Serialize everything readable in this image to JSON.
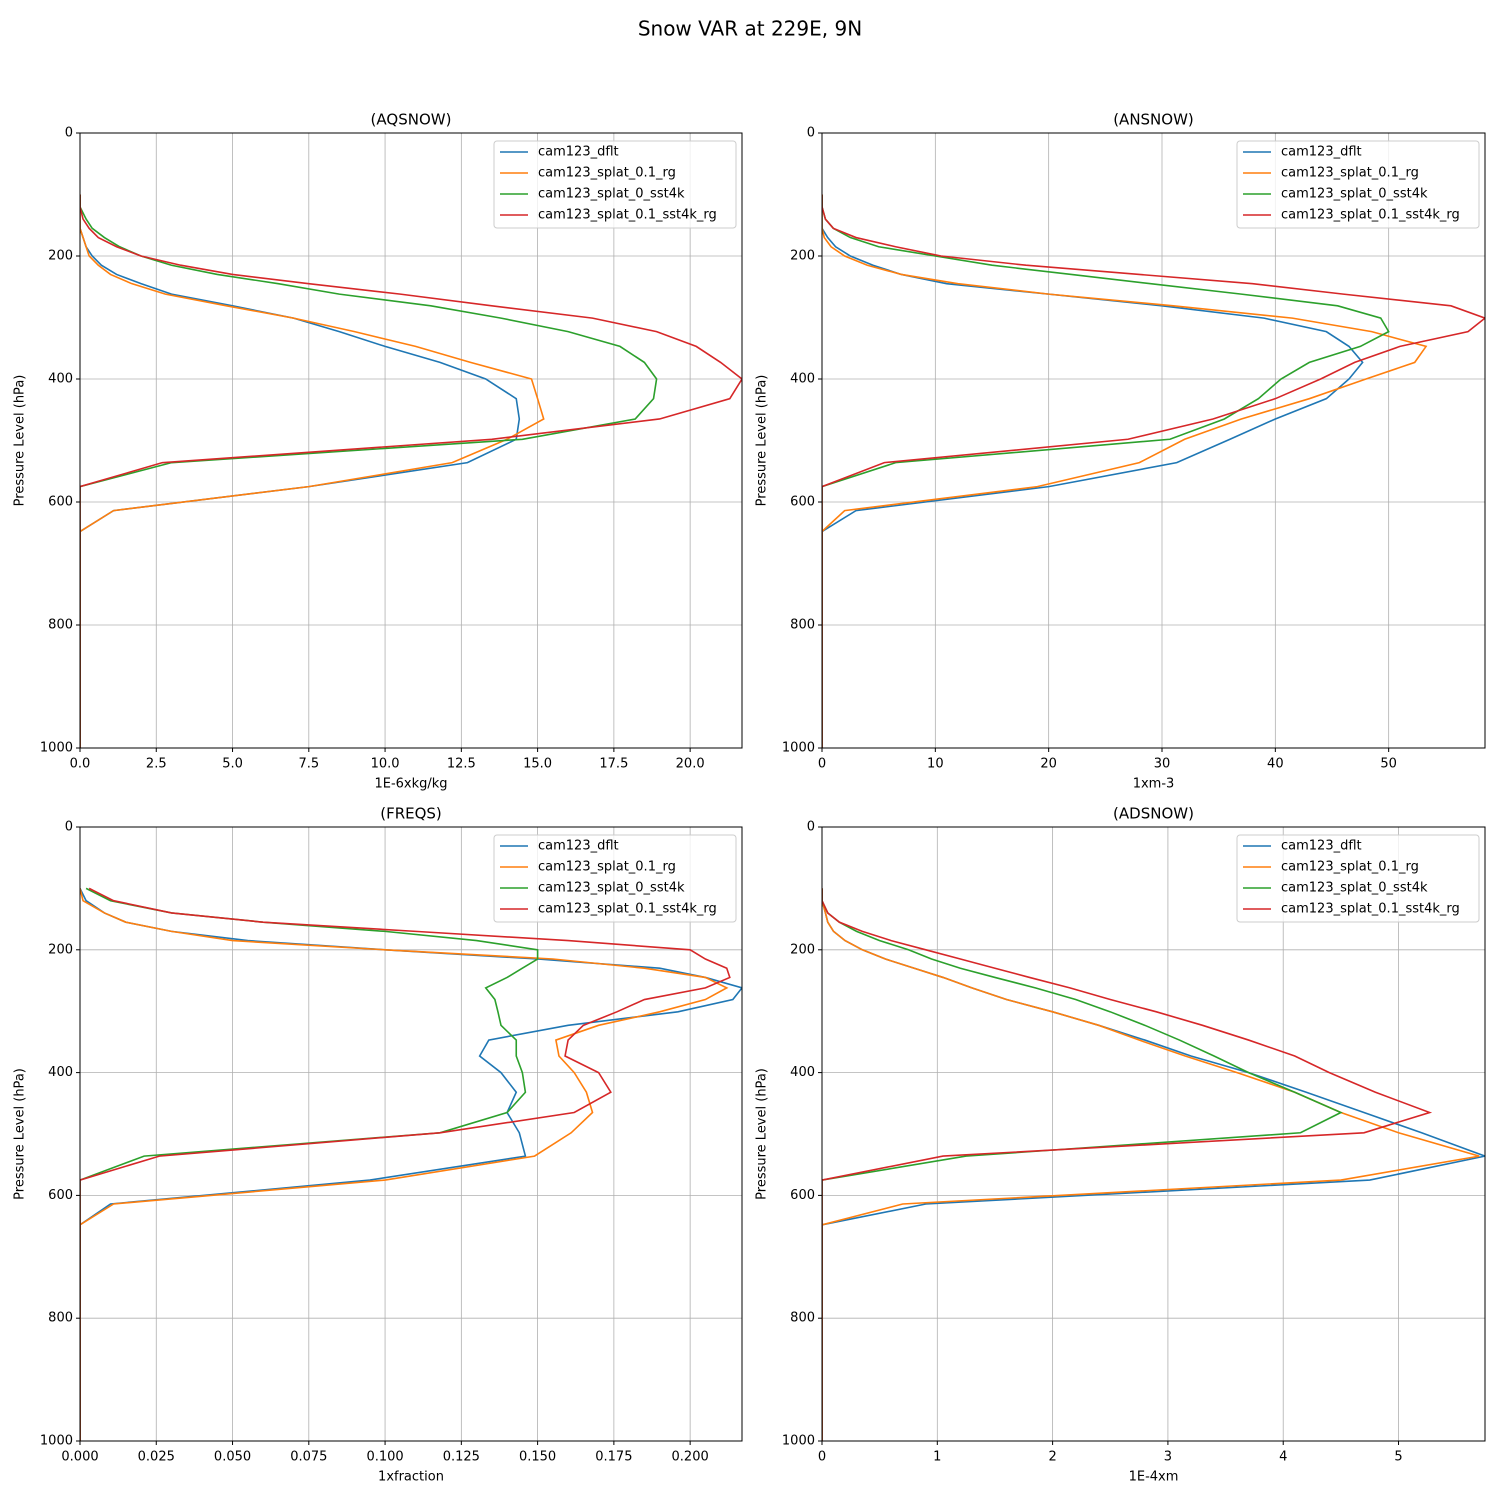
{
  "title": "Snow VAR at 229E, 9N",
  "chart_data": [
    {
      "type": "line",
      "title": "(AQSNOW)",
      "xlabel": "1E-6xkg/kg",
      "ylabel": "Pressure Level (hPa)",
      "y": [
        100,
        120,
        140,
        155,
        170,
        185,
        200,
        215,
        230,
        245,
        262,
        281,
        301,
        323,
        347,
        373,
        400,
        432,
        465,
        498,
        536,
        575,
        614,
        648,
        700,
        800,
        900,
        1000
      ],
      "xlim": [
        0,
        21.7
      ],
      "xticks": [
        {
          "value": 0,
          "label": "0.0"
        },
        2.5,
        {
          "value": 5,
          "label": "5.0"
        },
        7.5,
        {
          "value": 10,
          "label": "10.0"
        },
        12.5,
        {
          "value": 15,
          "label": "15.0"
        },
        17.5,
        {
          "value": 20,
          "label": "20.0"
        }
      ],
      "ylim": [
        1000,
        0
      ],
      "yticks": [
        0,
        200,
        400,
        600,
        800,
        1000
      ],
      "grid": true,
      "legend": "upper right",
      "series": [
        {
          "name": "cam123_dflt",
          "color": "#1f77b4",
          "values": [
            0,
            0,
            0,
            0,
            0.1,
            0.2,
            0.4,
            0.7,
            1.2,
            2.0,
            3.0,
            5.0,
            7.0,
            8.5,
            10.0,
            11.8,
            13.3,
            14.3,
            14.4,
            14.3,
            12.7,
            7.5,
            1.1,
            0,
            0,
            0,
            0,
            0
          ]
        },
        {
          "name": "cam123_splat_0.1_rg",
          "color": "#ff7f0e",
          "values": [
            0,
            0,
            0,
            0,
            0.1,
            0.2,
            0.3,
            0.6,
            1.0,
            1.7,
            2.8,
            4.8,
            7.0,
            9.0,
            11.0,
            12.8,
            14.8,
            15.0,
            15.2,
            14.0,
            12.2,
            7.5,
            1.1,
            0,
            0,
            0,
            0,
            0
          ]
        },
        {
          "name": "cam123_splat_0_sst4k",
          "color": "#2ca02c",
          "values": [
            0,
            0,
            0.2,
            0.4,
            0.8,
            1.3,
            2.0,
            3.0,
            4.5,
            6.5,
            8.5,
            11.5,
            13.8,
            16.0,
            17.7,
            18.5,
            18.9,
            18.8,
            18.2,
            14.5,
            3.0,
            0,
            0,
            0,
            0,
            0,
            0,
            0
          ]
        },
        {
          "name": "cam123_splat_0.1_sst4k_rg",
          "color": "#d62728",
          "values": [
            0,
            0,
            0.1,
            0.3,
            0.6,
            1.2,
            2.0,
            3.3,
            5.0,
            7.5,
            10.5,
            13.5,
            16.8,
            18.9,
            20.2,
            21.0,
            21.7,
            21.3,
            19.0,
            13.5,
            2.7,
            0,
            0,
            0,
            0,
            0,
            0,
            0
          ]
        }
      ]
    },
    {
      "type": "line",
      "title": "(ANSNOW)",
      "xlabel": "1xm-3",
      "ylabel": "Pressure Level (hPa)",
      "y": [
        100,
        120,
        140,
        155,
        170,
        185,
        200,
        215,
        230,
        245,
        262,
        281,
        301,
        323,
        347,
        373,
        400,
        432,
        465,
        498,
        536,
        575,
        614,
        648,
        700,
        800,
        900,
        1000
      ],
      "xlim": [
        0,
        58.5
      ],
      "xticks": [
        0,
        10,
        20,
        30,
        40,
        50
      ],
      "ylim": [
        1000,
        0
      ],
      "yticks": [
        0,
        200,
        400,
        600,
        800,
        1000
      ],
      "grid": true,
      "legend": "upper right",
      "series": [
        {
          "name": "cam123_dflt",
          "color": "#1f77b4",
          "values": [
            0,
            0,
            0,
            0,
            0.5,
            1.2,
            2.5,
            4.5,
            7.0,
            11,
            20,
            30,
            39,
            44.5,
            46.5,
            47.7,
            46.5,
            44.5,
            40,
            36,
            31.3,
            20,
            3,
            0,
            0,
            0,
            0,
            0
          ]
        },
        {
          "name": "cam123_splat_0.1_rg",
          "color": "#ff7f0e",
          "values": [
            0,
            0,
            0,
            0,
            0.2,
            0.8,
            2,
            4,
            7,
            12,
            20,
            31,
            41.5,
            48.5,
            53.3,
            52.3,
            48,
            43,
            37,
            32,
            28,
            19,
            2,
            0,
            0,
            0,
            0,
            0
          ]
        },
        {
          "name": "cam123_splat_0_sst4k",
          "color": "#2ca02c",
          "values": [
            0,
            0,
            0.3,
            1,
            2.5,
            5,
            10,
            15,
            22,
            29,
            37,
            45.5,
            49.3,
            50,
            47.5,
            43,
            40.5,
            38.5,
            35.5,
            30.7,
            6.5,
            0,
            0,
            0,
            0,
            0,
            0,
            0
          ]
        },
        {
          "name": "cam123_splat_0.1_sst4k_rg",
          "color": "#d62728",
          "values": [
            0,
            0,
            0.3,
            1,
            3,
            6.5,
            10.5,
            18,
            28,
            38,
            46,
            55.5,
            58.5,
            57,
            51,
            47,
            44,
            40,
            34.5,
            27,
            5.5,
            0,
            0,
            0,
            0,
            0,
            0,
            0
          ]
        }
      ]
    },
    {
      "type": "line",
      "title": "(FREQS)",
      "xlabel": "1xfraction",
      "ylabel": "Pressure Level (hPa)",
      "y": [
        100,
        120,
        140,
        155,
        170,
        185,
        200,
        215,
        230,
        245,
        262,
        281,
        301,
        323,
        347,
        373,
        400,
        432,
        465,
        498,
        536,
        575,
        614,
        648,
        700,
        800,
        900,
        1000
      ],
      "xlim": [
        0,
        0.217
      ],
      "xticks": [
        {
          "value": 0,
          "label": "0.000"
        },
        0.025,
        {
          "value": 0.05,
          "label": "0.050"
        },
        0.075,
        {
          "value": 0.1,
          "label": "0.100"
        },
        0.125,
        {
          "value": 0.15,
          "label": "0.150"
        },
        0.175,
        {
          "value": 0.2,
          "label": "0.200"
        }
      ],
      "ylim": [
        1000,
        0
      ],
      "yticks": [
        0,
        200,
        400,
        600,
        800,
        1000
      ],
      "grid": true,
      "legend": "upper right",
      "series": [
        {
          "name": "cam123_dflt",
          "color": "#1f77b4",
          "values": [
            0,
            0.002,
            0.008,
            0.015,
            0.03,
            0.055,
            0.1,
            0.15,
            0.19,
            0.205,
            0.217,
            0.214,
            0.196,
            0.16,
            0.134,
            0.131,
            0.138,
            0.143,
            0.14,
            0.144,
            0.146,
            0.095,
            0.01,
            0,
            0,
            0,
            0,
            0
          ]
        },
        {
          "name": "cam123_splat_0.1_rg",
          "color": "#ff7f0e",
          "values": [
            0,
            0.001,
            0.008,
            0.015,
            0.03,
            0.05,
            0.1,
            0.155,
            0.185,
            0.205,
            0.212,
            0.205,
            0.19,
            0.17,
            0.156,
            0.157,
            0.162,
            0.166,
            0.168,
            0.161,
            0.149,
            0.1,
            0.011,
            0,
            0,
            0,
            0,
            0
          ]
        },
        {
          "name": "cam123_splat_0_sst4k",
          "color": "#2ca02c",
          "values": [
            0.002,
            0.01,
            0.03,
            0.06,
            0.1,
            0.13,
            0.15,
            0.15,
            0.145,
            0.14,
            0.133,
            0.136,
            0.137,
            0.138,
            0.143,
            0.143,
            0.145,
            0.146,
            0.14,
            0.118,
            0.021,
            0,
            0,
            0,
            0,
            0,
            0,
            0
          ]
        },
        {
          "name": "cam123_splat_0.1_sst4k_rg",
          "color": "#d62728",
          "values": [
            0.003,
            0.011,
            0.03,
            0.06,
            0.11,
            0.16,
            0.2,
            0.205,
            0.212,
            0.213,
            0.205,
            0.185,
            0.176,
            0.165,
            0.16,
            0.159,
            0.17,
            0.174,
            0.162,
            0.118,
            0.026,
            0,
            0,
            0,
            0,
            0,
            0,
            0
          ]
        }
      ]
    },
    {
      "type": "line",
      "title": "(ADSNOW)",
      "xlabel": "1E-4xm",
      "ylabel": "Pressure Level (hPa)",
      "y": [
        100,
        120,
        140,
        155,
        170,
        185,
        200,
        215,
        230,
        245,
        262,
        281,
        301,
        323,
        347,
        373,
        400,
        432,
        465,
        498,
        536,
        575,
        614,
        648,
        700,
        800,
        900,
        1000
      ],
      "xlim": [
        0,
        5.75
      ],
      "xticks": [
        0,
        1,
        2,
        3,
        4,
        5
      ],
      "ylim": [
        1000,
        0
      ],
      "yticks": [
        0,
        200,
        400,
        600,
        800,
        1000
      ],
      "grid": true,
      "legend": "upper right",
      "series": [
        {
          "name": "cam123_dflt",
          "color": "#1f77b4",
          "values": [
            0,
            0,
            0.03,
            0.05,
            0.1,
            0.2,
            0.35,
            0.55,
            0.8,
            1.05,
            1.3,
            1.6,
            2.0,
            2.4,
            2.8,
            3.2,
            3.7,
            4.2,
            4.7,
            5.2,
            5.75,
            4.75,
            0.9,
            0,
            0,
            0,
            0,
            0
          ]
        },
        {
          "name": "cam123_splat_0.1_rg",
          "color": "#ff7f0e",
          "values": [
            0,
            0,
            0.03,
            0.05,
            0.1,
            0.2,
            0.35,
            0.55,
            0.8,
            1.05,
            1.3,
            1.6,
            2.0,
            2.4,
            2.75,
            3.15,
            3.6,
            4.1,
            4.5,
            5.0,
            5.7,
            4.5,
            0.7,
            0,
            0,
            0,
            0,
            0
          ]
        },
        {
          "name": "cam123_splat_0_sst4k",
          "color": "#2ca02c",
          "values": [
            0,
            0,
            0.05,
            0.15,
            0.3,
            0.5,
            0.75,
            0.95,
            1.2,
            1.5,
            1.85,
            2.2,
            2.5,
            2.8,
            3.1,
            3.4,
            3.7,
            4.1,
            4.5,
            4.15,
            1.25,
            0,
            0,
            0,
            0,
            0,
            0,
            0
          ]
        },
        {
          "name": "cam123_splat_0.1_sst4k_rg",
          "color": "#d62728",
          "values": [
            0,
            0,
            0.05,
            0.15,
            0.35,
            0.6,
            0.9,
            1.2,
            1.5,
            1.8,
            2.15,
            2.5,
            2.9,
            3.3,
            3.7,
            4.1,
            4.4,
            4.8,
            5.27,
            4.7,
            1.05,
            0,
            0,
            0,
            0,
            0,
            0,
            0
          ]
        }
      ]
    }
  ]
}
